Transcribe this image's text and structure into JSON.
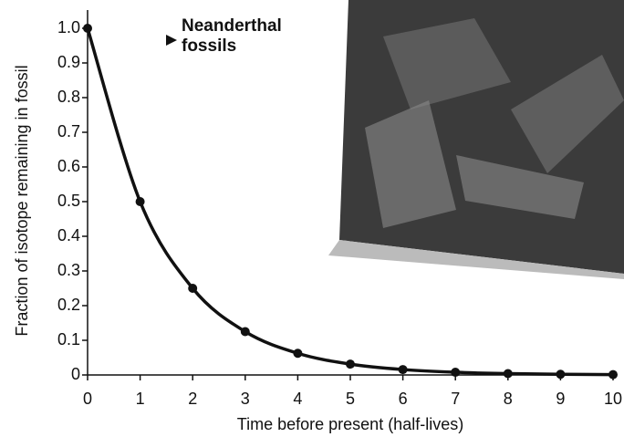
{
  "chart_data": {
    "type": "line",
    "annotation": "Neanderthal fossils",
    "x_label": "Time before present (half-lives)",
    "y_label": "Fraction of isotope remaining in fossil",
    "x": [
      0,
      1,
      2,
      3,
      4,
      5,
      6,
      7,
      8,
      9,
      10
    ],
    "series": [
      {
        "color": "#111111",
        "values": [
          1,
          0.5,
          0.25,
          0.125,
          0.0625,
          0.03125,
          0.015625,
          0.0078125,
          0.00390625,
          0.001953125,
          0.0009765625
        ]
      }
    ],
    "xlim": [
      0,
      10
    ],
    "xticks": [
      0,
      1,
      2,
      3,
      4,
      5,
      6,
      7,
      8,
      9,
      10
    ],
    "ylim": [
      0,
      1
    ],
    "yticks": [
      0,
      0.1,
      0.2,
      0.3,
      0.4,
      0.5,
      0.6,
      0.7,
      0.8,
      0.9,
      {
        "value": 1,
        "label": "1.0"
      }
    ],
    "grid": false
  }
}
